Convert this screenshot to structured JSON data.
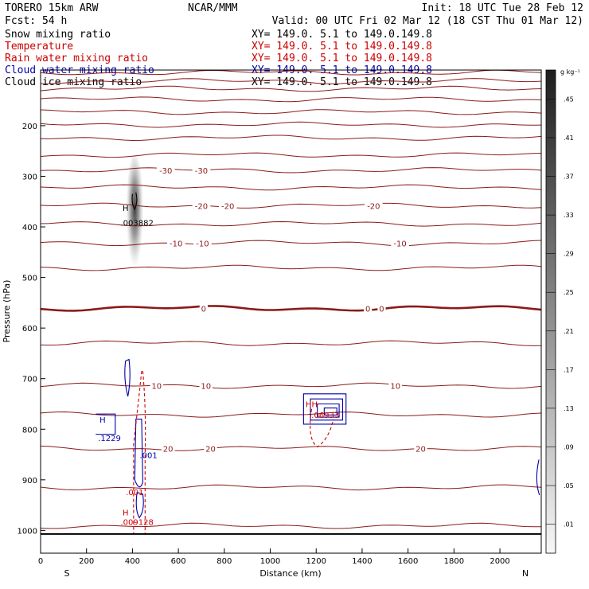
{
  "header": {
    "model": "TORERO  15km ARW",
    "center": "NCAR/MMM",
    "init": "Init: 18 UTC Tue 28 Feb 12",
    "fcst": "Fcst:   54 h",
    "valid": "Valid: 00 UTC Fri 02 Mar 12 (18 CST Thu 01 Mar 12)"
  },
  "fields": [
    {
      "label": "Snow mixing ratio",
      "xy": "XY= 149.0.  5.1 to 149.0.149.8",
      "color": "#000000"
    },
    {
      "label": "Temperature",
      "xy": "XY= 149.0.  5.1 to 149.0.149.8",
      "color": "#cc0000"
    },
    {
      "label": "Rain water mixing ratio",
      "xy": "XY= 149.0.  5.1 to 149.0.149.8",
      "color": "#cc0000"
    },
    {
      "label": "Cloud water mixing ratio",
      "xy": "XY= 149.0.  5.1 to 149.0.149.8",
      "color": "#0000aa"
    },
    {
      "label": "Cloud ice mixing ratio",
      "xy": "XY= 149.0.  5.1 to 149.0.149.8",
      "color": "#000000"
    }
  ],
  "chart_data": {
    "type": "contour",
    "xlabel": "Distance (km)",
    "ylabel": "Pressure (hPa)",
    "xlim": [
      0,
      2180
    ],
    "ylim": [
      1045,
      90
    ],
    "x_ticks": [
      0,
      200,
      400,
      600,
      800,
      1000,
      1200,
      1400,
      1600,
      1800,
      2000
    ],
    "y_ticks": [
      200,
      300,
      400,
      500,
      600,
      700,
      800,
      900,
      1000
    ],
    "direction_labels": {
      "left": "S",
      "right": "N"
    },
    "colors": {
      "temperature": "#8b1a1a",
      "rain": "#cc0000",
      "cloud_water": "#0000aa",
      "snow": "#000000"
    },
    "temperature_isotherms": [
      {
        "value": -70,
        "p": 95
      },
      {
        "value": -65,
        "p": 112
      },
      {
        "value": -60,
        "p": 127
      },
      {
        "value": -55,
        "p": 148
      },
      {
        "value": -50,
        "p": 173
      },
      {
        "value": -45,
        "p": 198
      },
      {
        "value": -40,
        "p": 224
      },
      {
        "value": -35,
        "p": 258
      },
      {
        "value": -30,
        "p": 288
      },
      {
        "value": -25,
        "p": 322
      },
      {
        "value": -20,
        "p": 358
      },
      {
        "value": -15,
        "p": 394
      },
      {
        "value": -10,
        "p": 432
      },
      {
        "value": -5,
        "p": 481
      },
      {
        "value": 0,
        "p": 561
      },
      {
        "value": 5,
        "p": 630
      },
      {
        "value": 10,
        "p": 714
      },
      {
        "value": 15,
        "p": 771
      },
      {
        "value": 20,
        "p": 838
      },
      {
        "value": 25,
        "p": 915
      },
      {
        "value": 30,
        "p": 991
      }
    ],
    "temperature_labels": [
      {
        "text": "-30",
        "x": 545,
        "p": 288
      },
      {
        "text": "-30",
        "x": 700,
        "p": 288
      },
      {
        "text": "-20",
        "x": 700,
        "p": 358
      },
      {
        "text": "-20",
        "x": 815,
        "p": 358
      },
      {
        "text": "-20",
        "x": 1450,
        "p": 358
      },
      {
        "text": "-10",
        "x": 590,
        "p": 432
      },
      {
        "text": "-10",
        "x": 705,
        "p": 432
      },
      {
        "text": "-10",
        "x": 1565,
        "p": 432
      },
      {
        "text": "0",
        "x": 710,
        "p": 561
      },
      {
        "text": "0",
        "x": 1425,
        "p": 561
      },
      {
        "text": "0",
        "x": 1485,
        "p": 561
      },
      {
        "text": "10",
        "x": 505,
        "p": 714
      },
      {
        "text": "10",
        "x": 720,
        "p": 714
      },
      {
        "text": "10",
        "x": 1545,
        "p": 714
      },
      {
        "text": "20",
        "x": 555,
        "p": 838
      },
      {
        "text": "20",
        "x": 740,
        "p": 838
      },
      {
        "text": "20",
        "x": 1655,
        "p": 838
      }
    ],
    "surface_p": 1007,
    "labels": [
      {
        "text": "H",
        "x": 370,
        "p": 362,
        "color": "#000000"
      },
      {
        "text": ".003882",
        "x": 420,
        "p": 391,
        "color": "#000000"
      },
      {
        "text": "H",
        "x": 270,
        "p": 781,
        "color": "#0000aa"
      },
      {
        "text": ".1229",
        "x": 300,
        "p": 817,
        "color": "#0000aa"
      },
      {
        "text": ".001",
        "x": 470,
        "p": 851,
        "color": "#0000aa"
      },
      {
        "text": ".001",
        "x": 410,
        "p": 924,
        "color": "#cc0000"
      },
      {
        "text": "H",
        "x": 370,
        "p": 964,
        "color": "#cc0000"
      },
      {
        "text": ".009128",
        "x": 420,
        "p": 983,
        "color": "#cc0000"
      },
      {
        "text": "HH",
        "x": 1180,
        "p": 750,
        "color": "#cc0000"
      },
      {
        "text": ".06933",
        "x": 1240,
        "p": 771,
        "color": "#cc0000"
      }
    ],
    "colorbar": {
      "unit": "g kg⁻¹",
      "ticks": [
        ".45",
        ".41",
        ".37",
        ".33",
        ".29",
        ".25",
        ".21",
        ".17",
        ".13",
        ".09",
        ".05",
        ".01"
      ]
    }
  }
}
